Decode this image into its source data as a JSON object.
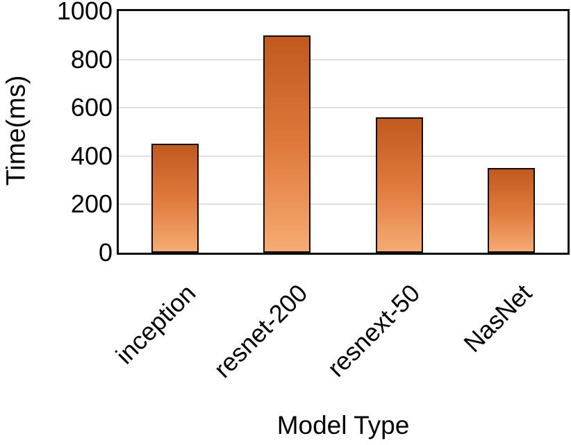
{
  "chart_data": {
    "type": "bar",
    "title": "",
    "categories": [
      "inception",
      "resnet-200",
      "resnext-50",
      "NasNet"
    ],
    "values": [
      450,
      900,
      560,
      350
    ],
    "xlabel": "Model Type",
    "ylabel": "Time(ms)",
    "ylim": [
      0,
      1000
    ],
    "yticks": [
      0,
      200,
      400,
      600,
      800,
      1000
    ],
    "grid": true,
    "legend_position": "none",
    "x_tick_rotation_deg": 45,
    "colors": {
      "bar_gradient_top": "#c2591f",
      "bar_gradient_mid": "#e07a3c",
      "bar_gradient_bottom": "#f6ab74",
      "bar_border": "#0d0d0d",
      "gridline": "#e0e0e0",
      "axis_border": "#0d0d0d",
      "text": "#000000",
      "background": "#ffffff"
    }
  }
}
